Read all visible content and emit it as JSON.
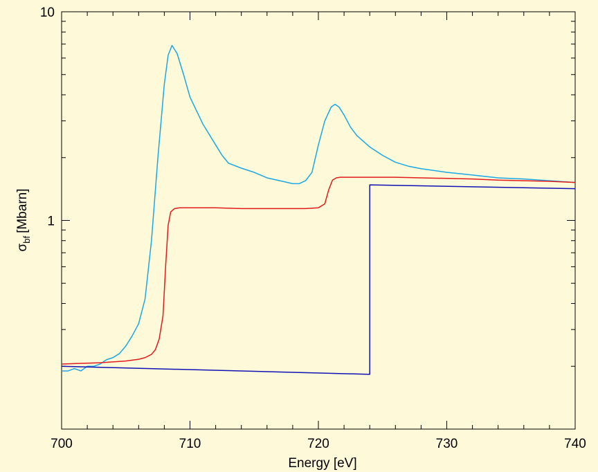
{
  "chart_data": {
    "type": "line",
    "title": "",
    "xlabel": "Energy [eV]",
    "ylabel": {
      "symbol": "σ",
      "subscript": "bf",
      "unit": "[Mbarn]"
    },
    "xlim": [
      700,
      740
    ],
    "ylim": [
      0.1,
      10
    ],
    "yscale": "log",
    "grid": false,
    "x_ticks": [
      700,
      710,
      720,
      730,
      740
    ],
    "x_tick_labels": [
      "700",
      "710",
      "720",
      "730",
      "740"
    ],
    "y_ticks": [
      1,
      10
    ],
    "y_tick_labels": [
      "1",
      "10"
    ],
    "series": [
      {
        "color": "#1aa7e6",
        "x": [
          700,
          700.5,
          701,
          701.5,
          702,
          702.5,
          703,
          703.5,
          704,
          704.5,
          705,
          705.5,
          706,
          706.5,
          707,
          707.5,
          708,
          708.3,
          708.6,
          709,
          709.5,
          710,
          711,
          712,
          712.5,
          713,
          714,
          715,
          716,
          717,
          718,
          718.5,
          719,
          719.5,
          720,
          720.5,
          721,
          721.3,
          721.6,
          722,
          722.5,
          723,
          724,
          725,
          726,
          727,
          728,
          730,
          732,
          734,
          736,
          738,
          740
        ],
        "values": [
          0.19,
          0.19,
          0.195,
          0.19,
          0.2,
          0.2,
          0.205,
          0.215,
          0.22,
          0.23,
          0.25,
          0.28,
          0.32,
          0.42,
          0.8,
          2.0,
          4.5,
          6.2,
          6.9,
          6.3,
          5.0,
          3.9,
          2.9,
          2.3,
          2.05,
          1.88,
          1.78,
          1.7,
          1.6,
          1.55,
          1.5,
          1.5,
          1.55,
          1.7,
          2.3,
          3.0,
          3.5,
          3.6,
          3.5,
          3.2,
          2.8,
          2.55,
          2.25,
          2.05,
          1.9,
          1.82,
          1.77,
          1.7,
          1.65,
          1.6,
          1.58,
          1.55,
          1.52
        ]
      },
      {
        "color": "#e41a1a",
        "x": [
          700,
          701,
          702,
          703,
          704,
          705,
          706,
          706.5,
          707,
          707.3,
          707.6,
          707.9,
          708.1,
          708.3,
          708.5,
          708.8,
          709.2,
          710,
          712,
          714,
          716,
          718,
          719,
          720,
          720.5,
          720.8,
          721.1,
          721.4,
          721.7,
          722,
          724,
          726,
          728,
          730,
          732,
          734,
          736,
          738,
          740
        ],
        "values": [
          0.205,
          0.206,
          0.207,
          0.208,
          0.21,
          0.212,
          0.216,
          0.22,
          0.228,
          0.24,
          0.27,
          0.35,
          0.6,
          0.95,
          1.1,
          1.14,
          1.15,
          1.15,
          1.15,
          1.14,
          1.14,
          1.14,
          1.14,
          1.15,
          1.2,
          1.4,
          1.56,
          1.6,
          1.61,
          1.61,
          1.61,
          1.61,
          1.6,
          1.59,
          1.58,
          1.56,
          1.55,
          1.54,
          1.52
        ]
      },
      {
        "color": "#1010b4",
        "x": [
          700,
          724,
          724,
          740
        ],
        "values": [
          0.2,
          0.183,
          1.48,
          1.42
        ]
      }
    ]
  }
}
